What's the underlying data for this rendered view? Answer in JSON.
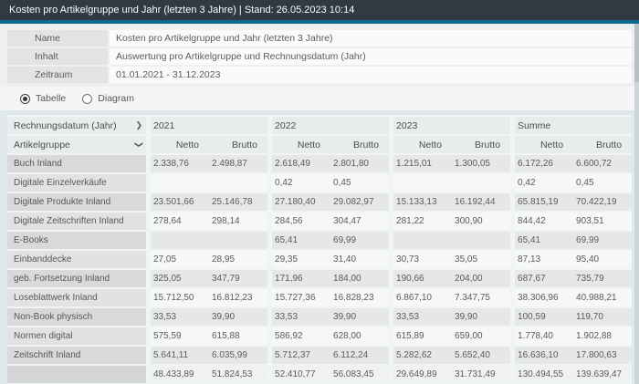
{
  "titlebar": {
    "title": "Kosten pro Artikelgruppe und Jahr (letzten 3 Jahre) | Stand: 26.05.2023 10:14"
  },
  "info": {
    "rows": [
      {
        "label": "Name",
        "value": "Kosten pro Artikelgruppe und Jahr (letzten 3 Jahre)"
      },
      {
        "label": "Inhalt",
        "value": "Auswertung pro Artikelgruppe und Rechnungsdatum (Jahr)"
      },
      {
        "label": "Zeitraum",
        "value": "01.01.2021 - 31.12.2023"
      }
    ]
  },
  "view_toggle": {
    "options": [
      {
        "label": "Tabelle",
        "selected": true
      },
      {
        "label": "Diagram",
        "selected": false
      }
    ]
  },
  "table": {
    "row_header_title": "Rechnungsdatum (Jahr)",
    "col_header_title": "Artikelgruppe",
    "year_groups": [
      "2021",
      "2022",
      "2023",
      "Summe"
    ],
    "sub_headers": [
      "Netto",
      "Brutto"
    ],
    "rows": [
      {
        "label": "Buch Inland",
        "values": [
          "2.338,76",
          "2.498,87",
          "2.618,49",
          "2.801,80",
          "1.215,01",
          "1.300,05",
          "6.172,26",
          "6.600,72"
        ]
      },
      {
        "label": "Digitale Einzelverkäufe",
        "values": [
          "",
          "",
          "0,42",
          "0,45",
          "",
          "",
          "0,42",
          "0,45"
        ]
      },
      {
        "label": "Digitale Produkte Inland",
        "values": [
          "23.501,66",
          "25.146,78",
          "27.180,40",
          "29.082,97",
          "15.133,13",
          "16.192,44",
          "65.815,19",
          "70.422,19"
        ]
      },
      {
        "label": "Digitale Zeitschriften Inland",
        "values": [
          "278,64",
          "298,14",
          "284,56",
          "304,47",
          "281,22",
          "300,90",
          "844,42",
          "903,51"
        ]
      },
      {
        "label": "E-Books",
        "values": [
          "",
          "",
          "65,41",
          "69,99",
          "",
          "",
          "65,41",
          "69,99"
        ]
      },
      {
        "label": "Einbanddecke",
        "values": [
          "27,05",
          "28,95",
          "29,35",
          "31,40",
          "30,73",
          "35,05",
          "87,13",
          "95,40"
        ]
      },
      {
        "label": "geb. Fortsetzung Inland",
        "values": [
          "325,05",
          "347,79",
          "171,96",
          "184,00",
          "190,66",
          "204,00",
          "687,67",
          "735,79"
        ]
      },
      {
        "label": "Loseblattwerk Inland",
        "values": [
          "15.712,50",
          "16.812,23",
          "15.727,36",
          "16.828,23",
          "6.867,10",
          "7.347,75",
          "38.306,96",
          "40.988,21"
        ]
      },
      {
        "label": "Non-Book physisch",
        "values": [
          "33,53",
          "39,90",
          "33,53",
          "39,90",
          "33,53",
          "39,90",
          "100,59",
          "119,70"
        ]
      },
      {
        "label": "Normen digital",
        "values": [
          "575,59",
          "615,88",
          "586,92",
          "628,00",
          "615,89",
          "659,00",
          "1.778,40",
          "1.902,88"
        ]
      },
      {
        "label": "Zeitschrift Inland",
        "values": [
          "5.641,11",
          "6.035,99",
          "5.712,37",
          "6.112,24",
          "5.282,62",
          "5.652,40",
          "16.636,10",
          "17.800,63"
        ]
      }
    ],
    "total_row": {
      "label": "",
      "values": [
        "48.433,89",
        "51.824,53",
        "52.410,77",
        "56.083,45",
        "29.649,89",
        "31.731,49",
        "130.494,55",
        "139.639,47"
      ]
    }
  },
  "colors": {
    "titlebar_bg": "#2f3a43",
    "accent_teal": "#0d6b8d",
    "page_bg": "#dfe8ea"
  }
}
